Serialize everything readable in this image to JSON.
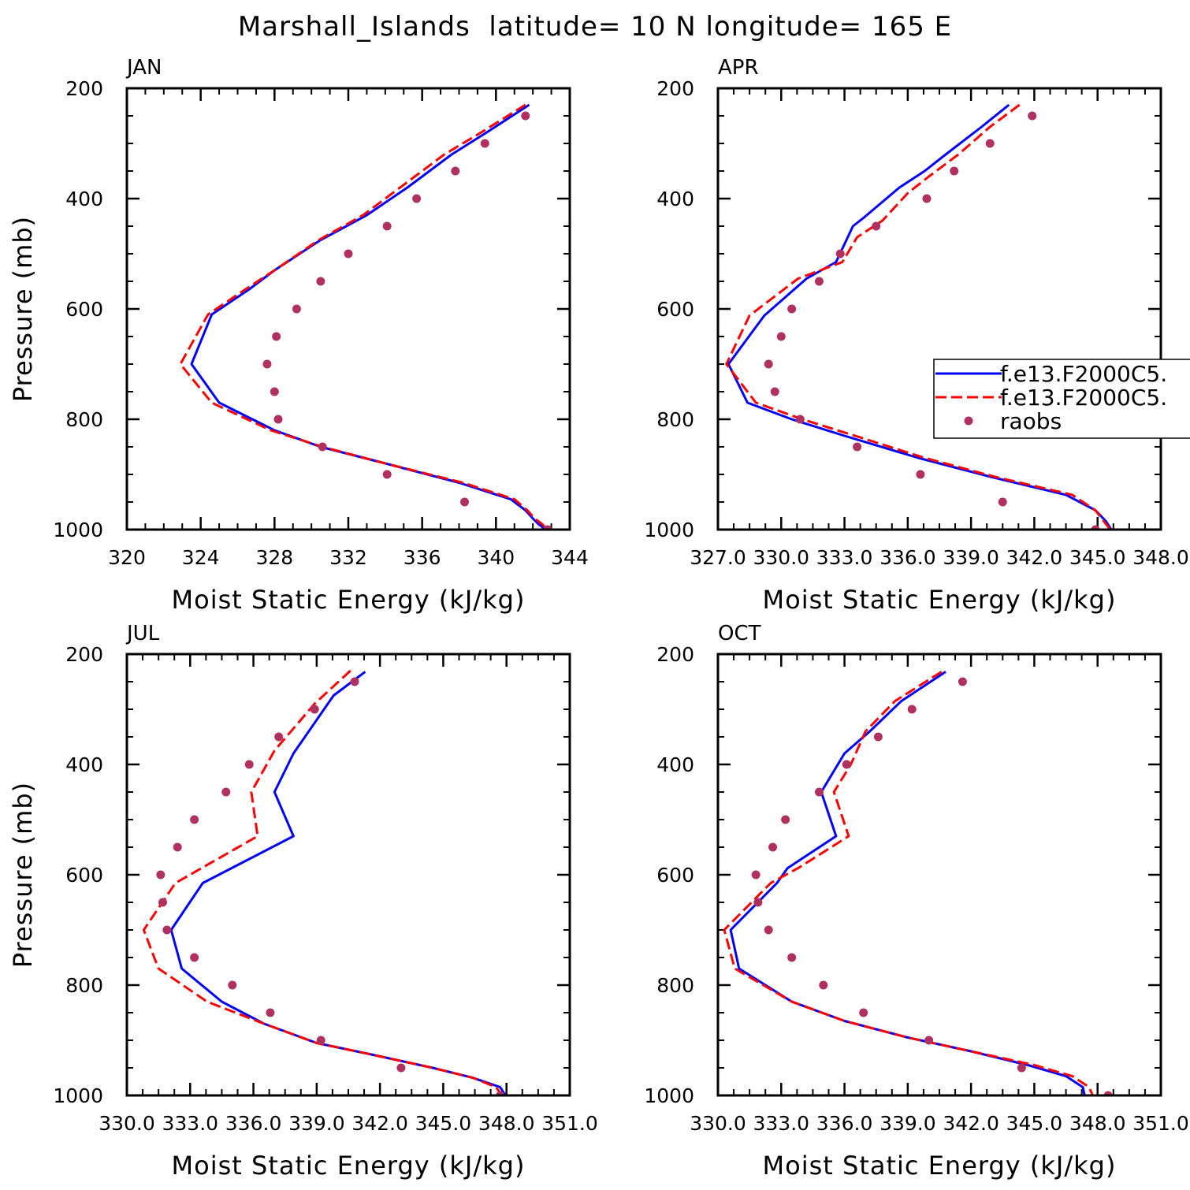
{
  "figure": {
    "title": "Marshall_Islands  latitude= 10 N longitude= 165 E"
  },
  "legend": {
    "entries": [
      {
        "label": "f.e13.F2000C5.",
        "style": "solid",
        "color": "#0000ff"
      },
      {
        "label": "f.e13.F2000C5.",
        "style": "dashed",
        "color": "#ff0000"
      },
      {
        "label": "raobs",
        "style": "marker",
        "color": "#b03060"
      }
    ]
  },
  "chart_data": [
    {
      "type": "line",
      "panel": "JAN",
      "xlabel": "Moist Static Energy (kJ/kg)",
      "ylabel": "Pressure (mb)",
      "xlim": [
        320,
        344
      ],
      "ylim": [
        1000,
        200
      ],
      "xticks": [
        320,
        324,
        328,
        332,
        336,
        340,
        344
      ],
      "xtick_labels": [
        "320",
        "324",
        "328",
        "332",
        "336",
        "340",
        "344"
      ],
      "yticks": [
        200,
        400,
        600,
        800,
        1000
      ],
      "y_reversed": true,
      "grid": false,
      "series": [
        {
          "color": "#0000ff",
          "style": "solid",
          "x": [
            341.8,
            339.5,
            337.6,
            335.2,
            333.0,
            330.5,
            328.0,
            326.6,
            324.6,
            323.5,
            325.0,
            328.0,
            330.5,
            334.0,
            338.0,
            340.8,
            341.6,
            342.0,
            342.3,
            342.7
          ],
          "y": [
            230,
            280,
            320,
            380,
            430,
            475,
            530,
            565,
            610,
            700,
            770,
            820,
            850,
            880,
            915,
            945,
            965,
            980,
            990,
            1000
          ]
        },
        {
          "color": "#ff0000",
          "style": "dashed",
          "x": [
            341.6,
            339.2,
            337.2,
            334.8,
            332.8,
            330.4,
            328.0,
            326.4,
            324.4,
            322.9,
            324.6,
            327.8,
            330.6,
            334.0,
            338.2,
            341.0,
            341.7,
            342.1,
            342.5,
            342.8
          ],
          "y": [
            230,
            280,
            320,
            380,
            430,
            475,
            530,
            565,
            610,
            700,
            770,
            820,
            850,
            880,
            915,
            945,
            965,
            980,
            990,
            1000
          ]
        },
        {
          "color": "#b03060",
          "style": "marker",
          "x": [
            341.6,
            339.4,
            337.8,
            335.7,
            334.1,
            332.0,
            330.5,
            329.2,
            328.1,
            327.6,
            328.0,
            328.2,
            330.6,
            334.1,
            338.3,
            342.8
          ],
          "y": [
            250,
            300,
            350,
            400,
            450,
            500,
            550,
            600,
            650,
            700,
            750,
            800,
            850,
            900,
            950,
            1000
          ]
        }
      ]
    },
    {
      "type": "line",
      "panel": "APR",
      "xlabel": "Moist Static Energy (kJ/kg)",
      "ylabel": "",
      "xlim": [
        327,
        348
      ],
      "ylim": [
        1000,
        200
      ],
      "xticks": [
        327,
        330,
        333,
        336,
        339,
        342,
        345,
        348
      ],
      "xtick_labels": [
        "327.0",
        "330.0",
        "333.0",
        "336.0",
        "339.0",
        "342.0",
        "345.0",
        "348.0"
      ],
      "yticks": [
        200,
        400,
        600,
        800,
        1000
      ],
      "y_reversed": true,
      "grid": false,
      "series": [
        {
          "color": "#0000ff",
          "style": "solid",
          "x": [
            340.8,
            339.5,
            337.8,
            336.8,
            335.6,
            333.9,
            333.4,
            332.6,
            331.2,
            329.2,
            327.5,
            328.4,
            330.5,
            333.0,
            336.5,
            340.0,
            343.5,
            344.9,
            345.4,
            345.7
          ],
          "y": [
            230,
            270,
            320,
            350,
            380,
            435,
            450,
            515,
            545,
            612,
            700,
            770,
            800,
            830,
            870,
            905,
            937,
            965,
            985,
            1003
          ]
        },
        {
          "color": "#ff0000",
          "style": "dashed",
          "x": [
            341.3,
            339.9,
            338.4,
            337.0,
            336.0,
            334.8,
            333.6,
            332.9,
            330.8,
            328.5,
            327.4,
            328.8,
            331.0,
            333.5,
            336.8,
            340.2,
            343.8,
            344.9,
            345.3,
            345.6
          ],
          "y": [
            230,
            270,
            320,
            360,
            390,
            440,
            470,
            515,
            545,
            612,
            700,
            770,
            800,
            830,
            870,
            905,
            937,
            965,
            985,
            1000
          ]
        },
        {
          "color": "#b03060",
          "style": "marker",
          "x": [
            341.9,
            339.9,
            338.2,
            336.9,
            334.5,
            332.8,
            331.8,
            330.5,
            330.0,
            329.4,
            329.7,
            330.9,
            333.6,
            336.6,
            340.5,
            344.9
          ],
          "y": [
            250,
            300,
            350,
            400,
            450,
            500,
            550,
            600,
            650,
            700,
            750,
            800,
            850,
            900,
            950,
            1000
          ]
        }
      ]
    },
    {
      "type": "line",
      "panel": "JUL",
      "xlabel": "Moist Static Energy (kJ/kg)",
      "ylabel": "Pressure (mb)",
      "xlim": [
        330,
        351
      ],
      "ylim": [
        1000,
        200
      ],
      "xticks": [
        330,
        333,
        336,
        339,
        342,
        345,
        348,
        351
      ],
      "xtick_labels": [
        "330.0",
        "333.0",
        "336.0",
        "339.0",
        "342.0",
        "345.0",
        "348.0",
        "351.0"
      ],
      "yticks": [
        200,
        400,
        600,
        800,
        1000
      ],
      "y_reversed": true,
      "grid": false,
      "series": [
        {
          "color": "#0000ff",
          "style": "solid",
          "x": [
            341.3,
            339.8,
            337.9,
            337.0,
            337.9,
            333.6,
            332.1,
            332.6,
            334.5,
            336.5,
            339.0,
            341.5,
            344.5,
            346.4,
            347.7,
            348.0
          ],
          "y": [
            232,
            275,
            380,
            450,
            530,
            615,
            700,
            770,
            830,
            870,
            905,
            925,
            950,
            968,
            985,
            1003
          ]
        },
        {
          "color": "#ff0000",
          "style": "dashed",
          "x": [
            340.6,
            338.9,
            337.0,
            335.9,
            336.2,
            332.3,
            330.8,
            331.5,
            333.8,
            336.5,
            339.0,
            341.5,
            344.5,
            346.4,
            347.5,
            347.8
          ],
          "y": [
            230,
            290,
            375,
            450,
            530,
            615,
            700,
            770,
            830,
            870,
            905,
            925,
            950,
            968,
            985,
            1000
          ]
        },
        {
          "color": "#b03060",
          "style": "marker",
          "x": [
            340.8,
            338.9,
            337.2,
            335.8,
            334.7,
            333.2,
            332.4,
            331.6,
            331.7,
            331.9,
            333.2,
            335.0,
            336.8,
            339.2,
            343.0,
            347.7
          ],
          "y": [
            250,
            300,
            350,
            400,
            450,
            500,
            550,
            600,
            650,
            700,
            750,
            800,
            850,
            900,
            950,
            1000
          ]
        }
      ]
    },
    {
      "type": "line",
      "panel": "OCT",
      "xlabel": "Moist Static Energy (kJ/kg)",
      "ylabel": "",
      "xlim": [
        330,
        351
      ],
      "ylim": [
        1000,
        200
      ],
      "xticks": [
        330,
        333,
        336,
        339,
        342,
        345,
        348,
        351
      ],
      "xtick_labels": [
        "330.0",
        "333.0",
        "336.0",
        "339.0",
        "342.0",
        "345.0",
        "348.0",
        "351.0"
      ],
      "yticks": [
        200,
        400,
        600,
        800,
        1000
      ],
      "y_reversed": true,
      "grid": false,
      "series": [
        {
          "color": "#0000ff",
          "style": "solid",
          "x": [
            340.8,
            338.7,
            337.2,
            336.0,
            334.9,
            335.6,
            333.3,
            332.8,
            330.6,
            331.0,
            333.5,
            336.0,
            339.0,
            342.0,
            344.7,
            346.5,
            347.3,
            347.4
          ],
          "y": [
            232,
            285,
            340,
            380,
            450,
            530,
            588,
            615,
            700,
            770,
            830,
            865,
            895,
            920,
            945,
            965,
            985,
            1003
          ]
        },
        {
          "color": "#ff0000",
          "style": "dashed",
          "x": [
            340.6,
            338.4,
            337.0,
            336.3,
            335.5,
            336.2,
            333.8,
            332.5,
            330.3,
            330.8,
            333.5,
            336.0,
            339.0,
            342.0,
            345.0,
            346.8,
            347.6,
            347.8
          ],
          "y": [
            232,
            285,
            340,
            400,
            450,
            530,
            588,
            615,
            700,
            770,
            830,
            865,
            895,
            920,
            945,
            965,
            985,
            1003
          ]
        },
        {
          "color": "#b03060",
          "style": "marker",
          "x": [
            341.6,
            339.2,
            337.6,
            336.1,
            334.8,
            333.2,
            332.6,
            331.8,
            331.9,
            332.4,
            333.5,
            335.0,
            336.9,
            340.0,
            344.4,
            348.5
          ],
          "y": [
            250,
            300,
            350,
            400,
            450,
            500,
            550,
            600,
            650,
            700,
            750,
            800,
            850,
            900,
            950,
            1000
          ]
        }
      ]
    }
  ]
}
